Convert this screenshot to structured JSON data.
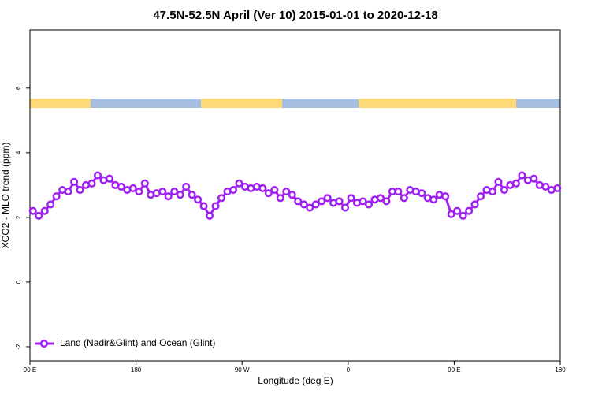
{
  "chart_data": {
    "type": "line",
    "title": "47.5N-52.5N April (Ver 10)   2015-01-01 to 2020-12-18",
    "x_label": "Longitude (deg E)",
    "y_label": "XCO2 - MLO trend (ppm)",
    "xlim": [
      90,
      540
    ],
    "ylim": [
      -2.44,
      7.8
    ],
    "xticks": [
      {
        "value": 90,
        "label": "90 E"
      },
      180,
      {
        "value": 270,
        "label": "90 W"
      },
      {
        "value": 360,
        "label": "0"
      },
      {
        "value": 450,
        "label": "90 E"
      },
      {
        "value": 540,
        "label": "180"
      }
    ],
    "yticks": [
      -2,
      0,
      2,
      4,
      6
    ],
    "legend": "bottom-left",
    "x": [
      92.5,
      97.5,
      102.5,
      107.5,
      112.5,
      117.5,
      122.5,
      127.5,
      132.5,
      137.5,
      142.5,
      147.5,
      152.5,
      157.5,
      162.5,
      167.5,
      172.5,
      177.5,
      182.5,
      187.5,
      192.5,
      197.5,
      202.5,
      207.5,
      212.5,
      217.5,
      222.5,
      227.5,
      232.5,
      237.5,
      242.5,
      247.5,
      252.5,
      257.5,
      262.5,
      267.5,
      272.5,
      277.5,
      282.5,
      287.5,
      292.5,
      297.5,
      302.5,
      307.5,
      312.5,
      317.5,
      322.5,
      327.5,
      332.5,
      337.5,
      342.5,
      347.5,
      352.5,
      357.5,
      362.5,
      367.5,
      372.5,
      377.5,
      382.5,
      387.5,
      392.5,
      397.5,
      402.5,
      407.5,
      412.5,
      417.5,
      422.5,
      427.5,
      432.5,
      437.5,
      442.5,
      447.5,
      452.5,
      457.5,
      462.5,
      467.5,
      472.5,
      477.5,
      482.5,
      487.5,
      492.5,
      497.5,
      502.5,
      507.5,
      512.5,
      517.5,
      522.5,
      527.5,
      532.5,
      537.5
    ],
    "series": [
      {
        "name": "Land (Nadir&Glint) and Ocean (Glint)",
        "color": "#a020f0",
        "values": [
          2.2,
          2.05,
          2.2,
          2.4,
          2.65,
          2.85,
          2.8,
          3.1,
          2.85,
          3.0,
          3.05,
          3.3,
          3.15,
          3.2,
          3.0,
          2.95,
          2.85,
          2.9,
          2.8,
          3.05,
          2.7,
          2.75,
          2.8,
          2.65,
          2.8,
          2.7,
          2.95,
          2.7,
          2.55,
          2.35,
          2.05,
          2.35,
          2.6,
          2.8,
          2.85,
          3.05,
          2.95,
          2.9,
          2.95,
          2.9,
          2.75,
          2.85,
          2.6,
          2.8,
          2.7,
          2.5,
          2.4,
          2.3,
          2.4,
          2.5,
          2.6,
          2.45,
          2.5,
          2.3,
          2.6,
          2.45,
          2.5,
          2.4,
          2.55,
          2.6,
          2.5,
          2.8,
          2.8,
          2.6,
          2.85,
          2.8,
          2.75,
          2.6,
          2.55,
          2.7,
          2.65,
          2.1,
          2.2,
          2.05,
          2.2,
          2.4,
          2.65,
          2.85,
          2.8,
          3.1,
          2.85,
          3.0,
          3.05,
          3.3,
          3.15,
          3.2,
          3.0,
          2.95,
          2.85,
          2.9
        ]
      }
    ]
  }
}
